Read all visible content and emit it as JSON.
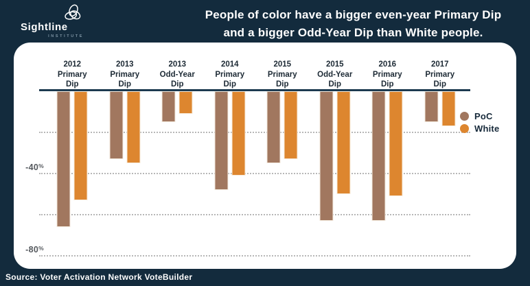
{
  "brand": {
    "name": "Sightline",
    "sub": "INSTITUTE"
  },
  "title": {
    "line1": "People of color have a bigger even-year Primary Dip",
    "line2": "and a bigger Odd-Year Dip than White people."
  },
  "source": "Source: Voter Activation Network VoteBuilder",
  "colors": {
    "background": "#132B3D",
    "panel": "#FFFFFF",
    "poc_bar": "#A1775F",
    "white_bar": "#DD862F",
    "axis": "#1C3A50",
    "gridline": "#B6B6B6",
    "tick_label": "#55595E",
    "category_label": "#1D2A35",
    "legend_text": "#16293A",
    "title_text": "#FFFFFF"
  },
  "chart_data": {
    "type": "bar",
    "categories": [
      [
        "2012",
        "Primary",
        "Dip"
      ],
      [
        "2013",
        "Primary",
        "Dip"
      ],
      [
        "2013",
        "Odd-Year",
        "Dip"
      ],
      [
        "2014",
        "Primary",
        "Dip"
      ],
      [
        "2015",
        "Primary",
        "Dip"
      ],
      [
        "2015",
        "Odd-Year",
        "Dip"
      ],
      [
        "2016",
        "Primary",
        "Dip"
      ],
      [
        "2017",
        "Primary",
        "Dip"
      ]
    ],
    "series": [
      {
        "name": "PoC",
        "color": "#A1775F",
        "values": [
          -66,
          -33,
          -15,
          -48,
          -35,
          -63,
          -63,
          -15
        ]
      },
      {
        "name": "White",
        "color": "#DD862F",
        "values": [
          -53,
          -35,
          -11,
          -41,
          -33,
          -50,
          -51,
          -17
        ]
      }
    ],
    "yticks": [
      {
        "value": "-40",
        "unit": "%",
        "pct": -40
      },
      {
        "value": "-80",
        "unit": "%",
        "pct": -80
      }
    ],
    "gridlines_pct": [
      -20,
      -40,
      -60,
      -80
    ],
    "ylim": [
      -85,
      0
    ],
    "grid": "dotted-horizontal",
    "legend_position": "right-inside",
    "xlabel": "",
    "ylabel": ""
  }
}
